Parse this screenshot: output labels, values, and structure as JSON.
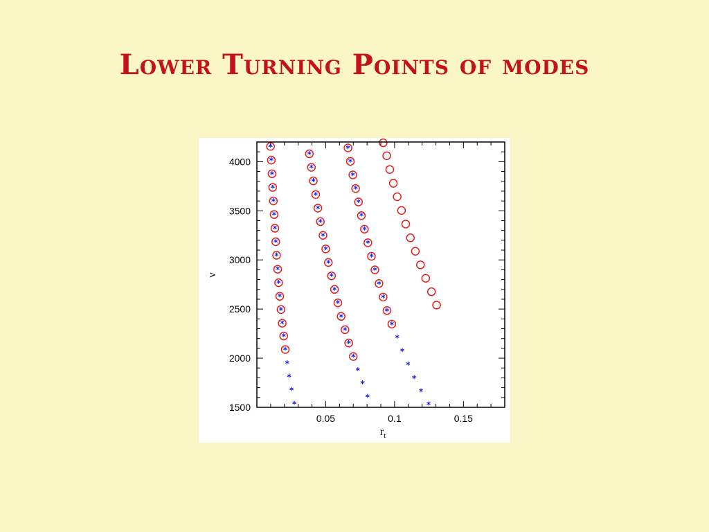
{
  "slide": {
    "title": "Lower Turning Points of modes"
  },
  "colors": {
    "background": "#faf6c6",
    "title": "#c4121a",
    "circle_series": "#e0201e",
    "star_series": "#1a1ae6"
  },
  "chart_data": {
    "type": "scatter",
    "title": "",
    "xlabel": "r",
    "xlabel_subscript": "t",
    "ylabel": "ν",
    "xlim": [
      0.0,
      0.18
    ],
    "ylim": [
      1500,
      4200
    ],
    "x_ticks": [
      0.05,
      0.1,
      0.15
    ],
    "x_tick_labels": [
      "0.05",
      "0.1",
      "0.15"
    ],
    "y_ticks": [
      1500,
      2000,
      2500,
      3000,
      3500,
      4000
    ],
    "y_tick_labels": [
      "1500",
      "2000",
      "2500",
      "3000",
      "3500",
      "4000"
    ],
    "grid": false,
    "legend": "none",
    "series": [
      {
        "marker": "open-circle",
        "color": "#e0201e",
        "points": [
          [
            0.0099,
            4155
          ],
          [
            0.0105,
            4015
          ],
          [
            0.011,
            3877
          ],
          [
            0.0115,
            3738
          ],
          [
            0.012,
            3600
          ],
          [
            0.0125,
            3462
          ],
          [
            0.0131,
            3322
          ],
          [
            0.0137,
            3185
          ],
          [
            0.0143,
            3047
          ],
          [
            0.0151,
            2905
          ],
          [
            0.0158,
            2768
          ],
          [
            0.0166,
            2630
          ],
          [
            0.0175,
            2495
          ],
          [
            0.0184,
            2356
          ],
          [
            0.0195,
            2225
          ],
          [
            0.0206,
            2088
          ],
          [
            0.0381,
            4080
          ],
          [
            0.0396,
            3942
          ],
          [
            0.041,
            3804
          ],
          [
            0.0427,
            3665
          ],
          [
            0.0443,
            3527
          ],
          [
            0.0461,
            3390
          ],
          [
            0.048,
            3250
          ],
          [
            0.05,
            3112
          ],
          [
            0.0519,
            2974
          ],
          [
            0.0542,
            2838
          ],
          [
            0.0564,
            2700
          ],
          [
            0.0588,
            2563
          ],
          [
            0.0612,
            2425
          ],
          [
            0.064,
            2290
          ],
          [
            0.0667,
            2154
          ],
          [
            0.07,
            2017
          ],
          [
            0.0662,
            4140
          ],
          [
            0.0679,
            4003
          ],
          [
            0.0697,
            3865
          ],
          [
            0.0717,
            3727
          ],
          [
            0.0738,
            3590
          ],
          [
            0.0759,
            3451
          ],
          [
            0.0781,
            3313
          ],
          [
            0.0806,
            3175
          ],
          [
            0.0832,
            3037
          ],
          [
            0.0857,
            2899
          ],
          [
            0.0887,
            2760
          ],
          [
            0.0917,
            2622
          ],
          [
            0.0945,
            2485
          ],
          [
            0.098,
            2347
          ],
          [
            0.0917,
            4192
          ],
          [
            0.0943,
            4060
          ],
          [
            0.0965,
            3920
          ],
          [
            0.0991,
            3780
          ],
          [
            0.1019,
            3643
          ],
          [
            0.105,
            3503
          ],
          [
            0.1081,
            3365
          ],
          [
            0.1115,
            3225
          ],
          [
            0.1151,
            3088
          ],
          [
            0.1188,
            2950
          ],
          [
            0.1226,
            2813
          ],
          [
            0.1268,
            2676
          ],
          [
            0.1305,
            2540
          ]
        ]
      },
      {
        "marker": "star",
        "color": "#1a1ae6",
        "points": [
          [
            0.0099,
            4155
          ],
          [
            0.0105,
            4015
          ],
          [
            0.011,
            3877
          ],
          [
            0.0115,
            3738
          ],
          [
            0.012,
            3600
          ],
          [
            0.0125,
            3462
          ],
          [
            0.0131,
            3322
          ],
          [
            0.0137,
            3185
          ],
          [
            0.0143,
            3047
          ],
          [
            0.0151,
            2905
          ],
          [
            0.0158,
            2768
          ],
          [
            0.0166,
            2630
          ],
          [
            0.0175,
            2495
          ],
          [
            0.0184,
            2356
          ],
          [
            0.0195,
            2225
          ],
          [
            0.0206,
            2088
          ],
          [
            0.022,
            1950
          ],
          [
            0.0234,
            1815
          ],
          [
            0.0252,
            1680
          ],
          [
            0.0272,
            1540
          ],
          [
            0.0381,
            4080
          ],
          [
            0.0396,
            3942
          ],
          [
            0.041,
            3804
          ],
          [
            0.0427,
            3665
          ],
          [
            0.0443,
            3527
          ],
          [
            0.0461,
            3390
          ],
          [
            0.048,
            3250
          ],
          [
            0.05,
            3112
          ],
          [
            0.0519,
            2974
          ],
          [
            0.0542,
            2838
          ],
          [
            0.0564,
            2700
          ],
          [
            0.0588,
            2563
          ],
          [
            0.0612,
            2425
          ],
          [
            0.064,
            2290
          ],
          [
            0.0667,
            2154
          ],
          [
            0.07,
            2017
          ],
          [
            0.0733,
            1880
          ],
          [
            0.0767,
            1745
          ],
          [
            0.0803,
            1610
          ],
          [
            0.0662,
            4140
          ],
          [
            0.0679,
            4003
          ],
          [
            0.0697,
            3865
          ],
          [
            0.0717,
            3727
          ],
          [
            0.0738,
            3590
          ],
          [
            0.0759,
            3451
          ],
          [
            0.0781,
            3313
          ],
          [
            0.0806,
            3175
          ],
          [
            0.0832,
            3037
          ],
          [
            0.0857,
            2899
          ],
          [
            0.0887,
            2760
          ],
          [
            0.0917,
            2622
          ],
          [
            0.0945,
            2485
          ],
          [
            0.098,
            2347
          ],
          [
            0.1019,
            2212
          ],
          [
            0.1056,
            2074
          ],
          [
            0.1098,
            1938
          ],
          [
            0.1142,
            1800
          ],
          [
            0.1192,
            1665
          ],
          [
            0.1247,
            1530
          ]
        ]
      }
    ]
  }
}
